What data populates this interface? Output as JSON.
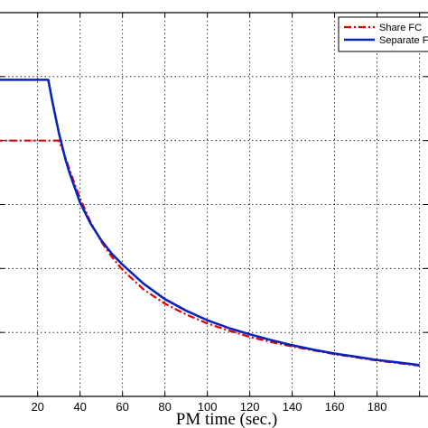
{
  "chart_data": {
    "type": "line",
    "xlabel": "PM time (sec.)",
    "ylabel": "",
    "xlim": [
      0,
      204
    ],
    "ylim": [
      0,
      6
    ],
    "x_ticks": [
      20,
      40,
      60,
      80,
      100,
      120,
      140,
      160,
      180
    ],
    "x_tick_labels": [
      "20",
      "40",
      "60",
      "80",
      "100",
      "120",
      "140",
      "160",
      "180"
    ],
    "grid": true,
    "grid_x": [
      0,
      20,
      40,
      60,
      80,
      100,
      120,
      140,
      160,
      180,
      200
    ],
    "grid_y": [
      1,
      2,
      3,
      4,
      5
    ],
    "legend_position": "top-right",
    "series": [
      {
        "name": "Share FC",
        "color": "#e00000",
        "style": "dashdot",
        "x": [
          0,
          30,
          32,
          35,
          38,
          40,
          45,
          50,
          55,
          60,
          70,
          80,
          90,
          100,
          110,
          120,
          130,
          140,
          150,
          160,
          170,
          180,
          190,
          200
        ],
        "y": [
          4.0,
          4.0,
          3.84,
          3.55,
          3.27,
          3.1,
          2.72,
          2.42,
          2.18,
          1.98,
          1.67,
          1.45,
          1.28,
          1.14,
          1.03,
          0.93,
          0.85,
          0.78,
          0.72,
          0.66,
          0.61,
          0.56,
          0.52,
          0.48
        ]
      },
      {
        "name": "Separate FC",
        "color": "#0b24b8",
        "style": "solid",
        "x": [
          0,
          25,
          27,
          30,
          33,
          35,
          40,
          45,
          50,
          55,
          60,
          70,
          80,
          90,
          100,
          110,
          120,
          130,
          140,
          150,
          160,
          170,
          180,
          190,
          200
        ],
        "y": [
          4.95,
          4.95,
          4.6,
          4.12,
          3.72,
          3.5,
          3.03,
          2.7,
          2.44,
          2.23,
          2.06,
          1.76,
          1.52,
          1.34,
          1.19,
          1.07,
          0.97,
          0.88,
          0.8,
          0.73,
          0.67,
          0.62,
          0.57,
          0.53,
          0.49
        ]
      }
    ]
  }
}
